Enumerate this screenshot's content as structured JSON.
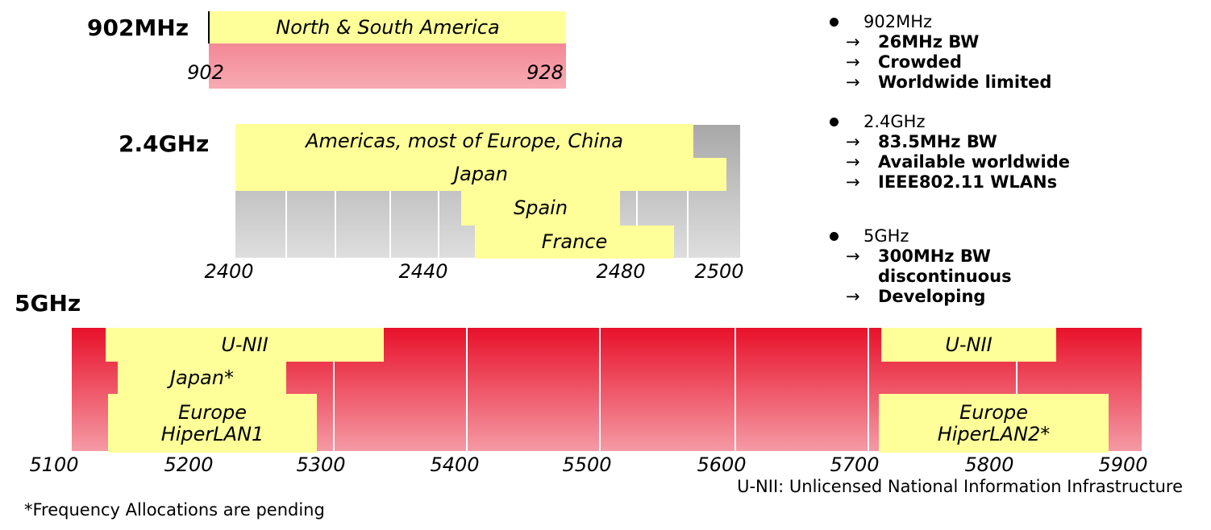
{
  "bands": {
    "b902": {
      "label": "902MHz",
      "regions": [
        {
          "name": "North & South America"
        }
      ],
      "ticks": [
        "902",
        "928"
      ]
    },
    "b24": {
      "label": "2.4GHz",
      "regions": [
        {
          "name": "Americas, most of Europe, China"
        },
        {
          "name": "Japan"
        },
        {
          "name": "Spain"
        },
        {
          "name": "France"
        }
      ],
      "ticks": [
        "2400",
        "2440",
        "2480",
        "2500"
      ]
    },
    "b5": {
      "label": "5GHz",
      "regions": [
        {
          "name": "U-NII"
        },
        {
          "name": "Japan*"
        },
        {
          "name": "Europe\nHiperLAN1"
        },
        {
          "name": "U-NII"
        },
        {
          "name": "Europe\nHiperLAN2*"
        }
      ],
      "ticks": [
        "5100",
        "5200",
        "5300",
        "5400",
        "5500",
        "5600",
        "5700",
        "5800",
        "5900"
      ]
    }
  },
  "summary": [
    {
      "title": "902MHz",
      "points": [
        "26MHz BW",
        "Crowded",
        "Worldwide limited"
      ]
    },
    {
      "title": "2.4GHz",
      "points": [
        "83.5MHz BW",
        "Available worldwide",
        "IEEE802.11 WLANs"
      ]
    },
    {
      "title": "5GHz",
      "points": [
        "300MHz BW discontinuous",
        "Developing"
      ]
    }
  ],
  "arrow_glyph": "→",
  "footnotes": {
    "unii": "U-NII: Unlicensed National Information Infrastructure",
    "pending": "*Frequency Allocations are pending"
  },
  "colors": {
    "region_fill": "#ffff99",
    "band_red": "#e8112a",
    "band_gray": "#a8a8a8"
  }
}
